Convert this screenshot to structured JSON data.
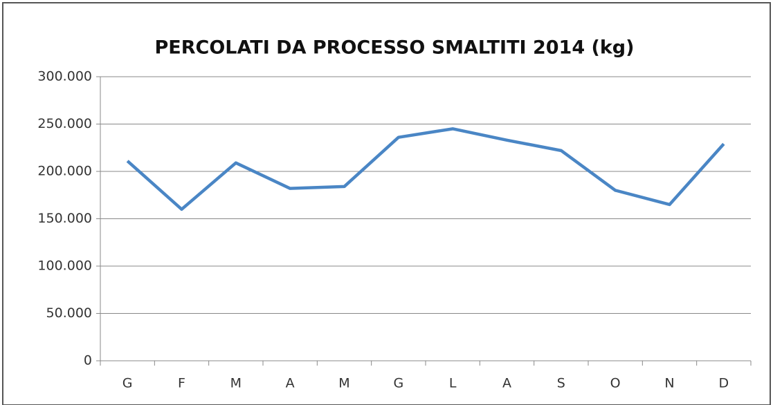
{
  "chart_data": {
    "type": "line",
    "title": "PERCOLATI DA PROCESSO SMALTITI 2014 (kg)",
    "categories": [
      "G",
      "F",
      "M",
      "A",
      "M",
      "G",
      "L",
      "A",
      "S",
      "O",
      "N",
      "D"
    ],
    "series": [
      {
        "color": "#4a86c5",
        "values": [
          211000,
          160000,
          209000,
          182000,
          184000,
          236000,
          245000,
          233000,
          222000,
          180000,
          165000,
          229000
        ]
      }
    ],
    "ylim": [
      0,
      300000
    ],
    "yticks": [
      0,
      {
        "value": 50000,
        "label": "50.000"
      },
      {
        "value": 100000,
        "label": "100.000"
      },
      {
        "value": 150000,
        "label": "150.000"
      },
      {
        "value": 200000,
        "label": "200.000"
      },
      {
        "value": 250000,
        "label": "250.000"
      },
      {
        "value": 300000,
        "label": "300.000"
      }
    ],
    "grid": true
  }
}
